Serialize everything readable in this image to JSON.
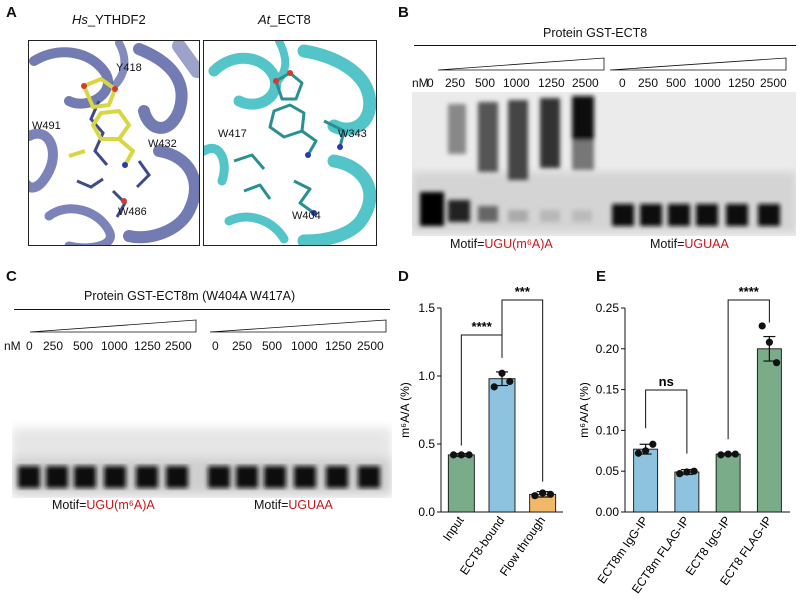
{
  "panels": {
    "a": {
      "label": "A",
      "left_title_italic": "Hs",
      "left_title_rest": "_YTHDF2",
      "right_title_italic": "At",
      "right_title_rest": "_ECT8",
      "left_residues": [
        "Y418",
        "W491",
        "W432",
        "W486"
      ],
      "right_residues": [
        "W417",
        "W343",
        "W404"
      ],
      "colors": {
        "left_protein": "#5a64a6",
        "ligand": "#d8d641",
        "right_protein": "#36bcbf",
        "oxygen": "#d63a2f",
        "nitrogen": "#2a3ba8"
      }
    },
    "b": {
      "label": "B",
      "protein_title": "Protein GST-ECT8",
      "nm_label": "nM",
      "conc_left": [
        "0",
        "250",
        "500",
        "1000",
        "1250",
        "2500"
      ],
      "conc_right": [
        "0",
        "250",
        "500",
        "1000",
        "1250",
        "2500"
      ],
      "motif_prefix": "Motif=",
      "motif_left": "UGU(m⁶A)A",
      "motif_right": "UGUAA"
    },
    "c": {
      "label": "C",
      "protein_title": "Protein GST-ECT8m (W404A W417A)",
      "nm_label": "nM",
      "conc_left": [
        "0",
        "250",
        "500",
        "1000",
        "1250",
        "2500"
      ],
      "conc_right": [
        "0",
        "250",
        "500",
        "1000",
        "1250",
        "2500"
      ],
      "motif_prefix": "Motif=",
      "motif_left": "UGU(m⁶A)A",
      "motif_right": "UGUAA"
    },
    "d": {
      "label": "D"
    },
    "e": {
      "label": "E"
    }
  },
  "chart_data": [
    {
      "type": "bar",
      "panel": "D",
      "categories": [
        "Input",
        "ECT8-bound",
        "Flow through"
      ],
      "values": [
        0.42,
        0.98,
        0.13
      ],
      "errors": [
        0.01,
        0.05,
        0.02
      ],
      "points": [
        [
          0.42,
          0.42,
          0.42
        ],
        [
          0.92,
          1.02,
          0.96
        ],
        [
          0.12,
          0.14,
          0.13
        ]
      ],
      "colors": [
        "#7aac8a",
        "#8ec3e0",
        "#f2b86a"
      ],
      "ylabel": "m⁶A/A (%)",
      "ylim": [
        0,
        1.5
      ],
      "yticks": [
        "0.0",
        "0.5",
        "1.0",
        "1.5"
      ],
      "significance": [
        {
          "from": 0,
          "to": 1,
          "text": "****"
        },
        {
          "from": 1,
          "to": 2,
          "text": "***"
        }
      ]
    },
    {
      "type": "bar",
      "panel": "E",
      "categories": [
        "ECT8m IgG-IP",
        "ECT8m FLAG-IP",
        "ECT8 IgG-IP",
        "ECT8 FLAG-IP"
      ],
      "values": [
        0.077,
        0.049,
        0.071,
        0.2
      ],
      "errors": [
        0.006,
        0.003,
        0.001,
        0.015
      ],
      "points": [
        [
          0.072,
          0.075,
          0.083
        ],
        [
          0.047,
          0.049,
          0.05
        ],
        [
          0.07,
          0.071,
          0.071
        ],
        [
          0.228,
          0.208,
          0.183
        ]
      ],
      "colors": [
        "#8ec3e0",
        "#8ec3e0",
        "#7aac8a",
        "#7aac8a"
      ],
      "ylabel": "m⁶A/A (%)",
      "ylim": [
        0,
        0.25
      ],
      "yticks": [
        "0.00",
        "0.05",
        "0.10",
        "0.15",
        "0.20",
        "0.25"
      ],
      "significance": [
        {
          "from": 0,
          "to": 1,
          "text": "ns"
        },
        {
          "from": 2,
          "to": 3,
          "text": "****"
        }
      ]
    }
  ]
}
